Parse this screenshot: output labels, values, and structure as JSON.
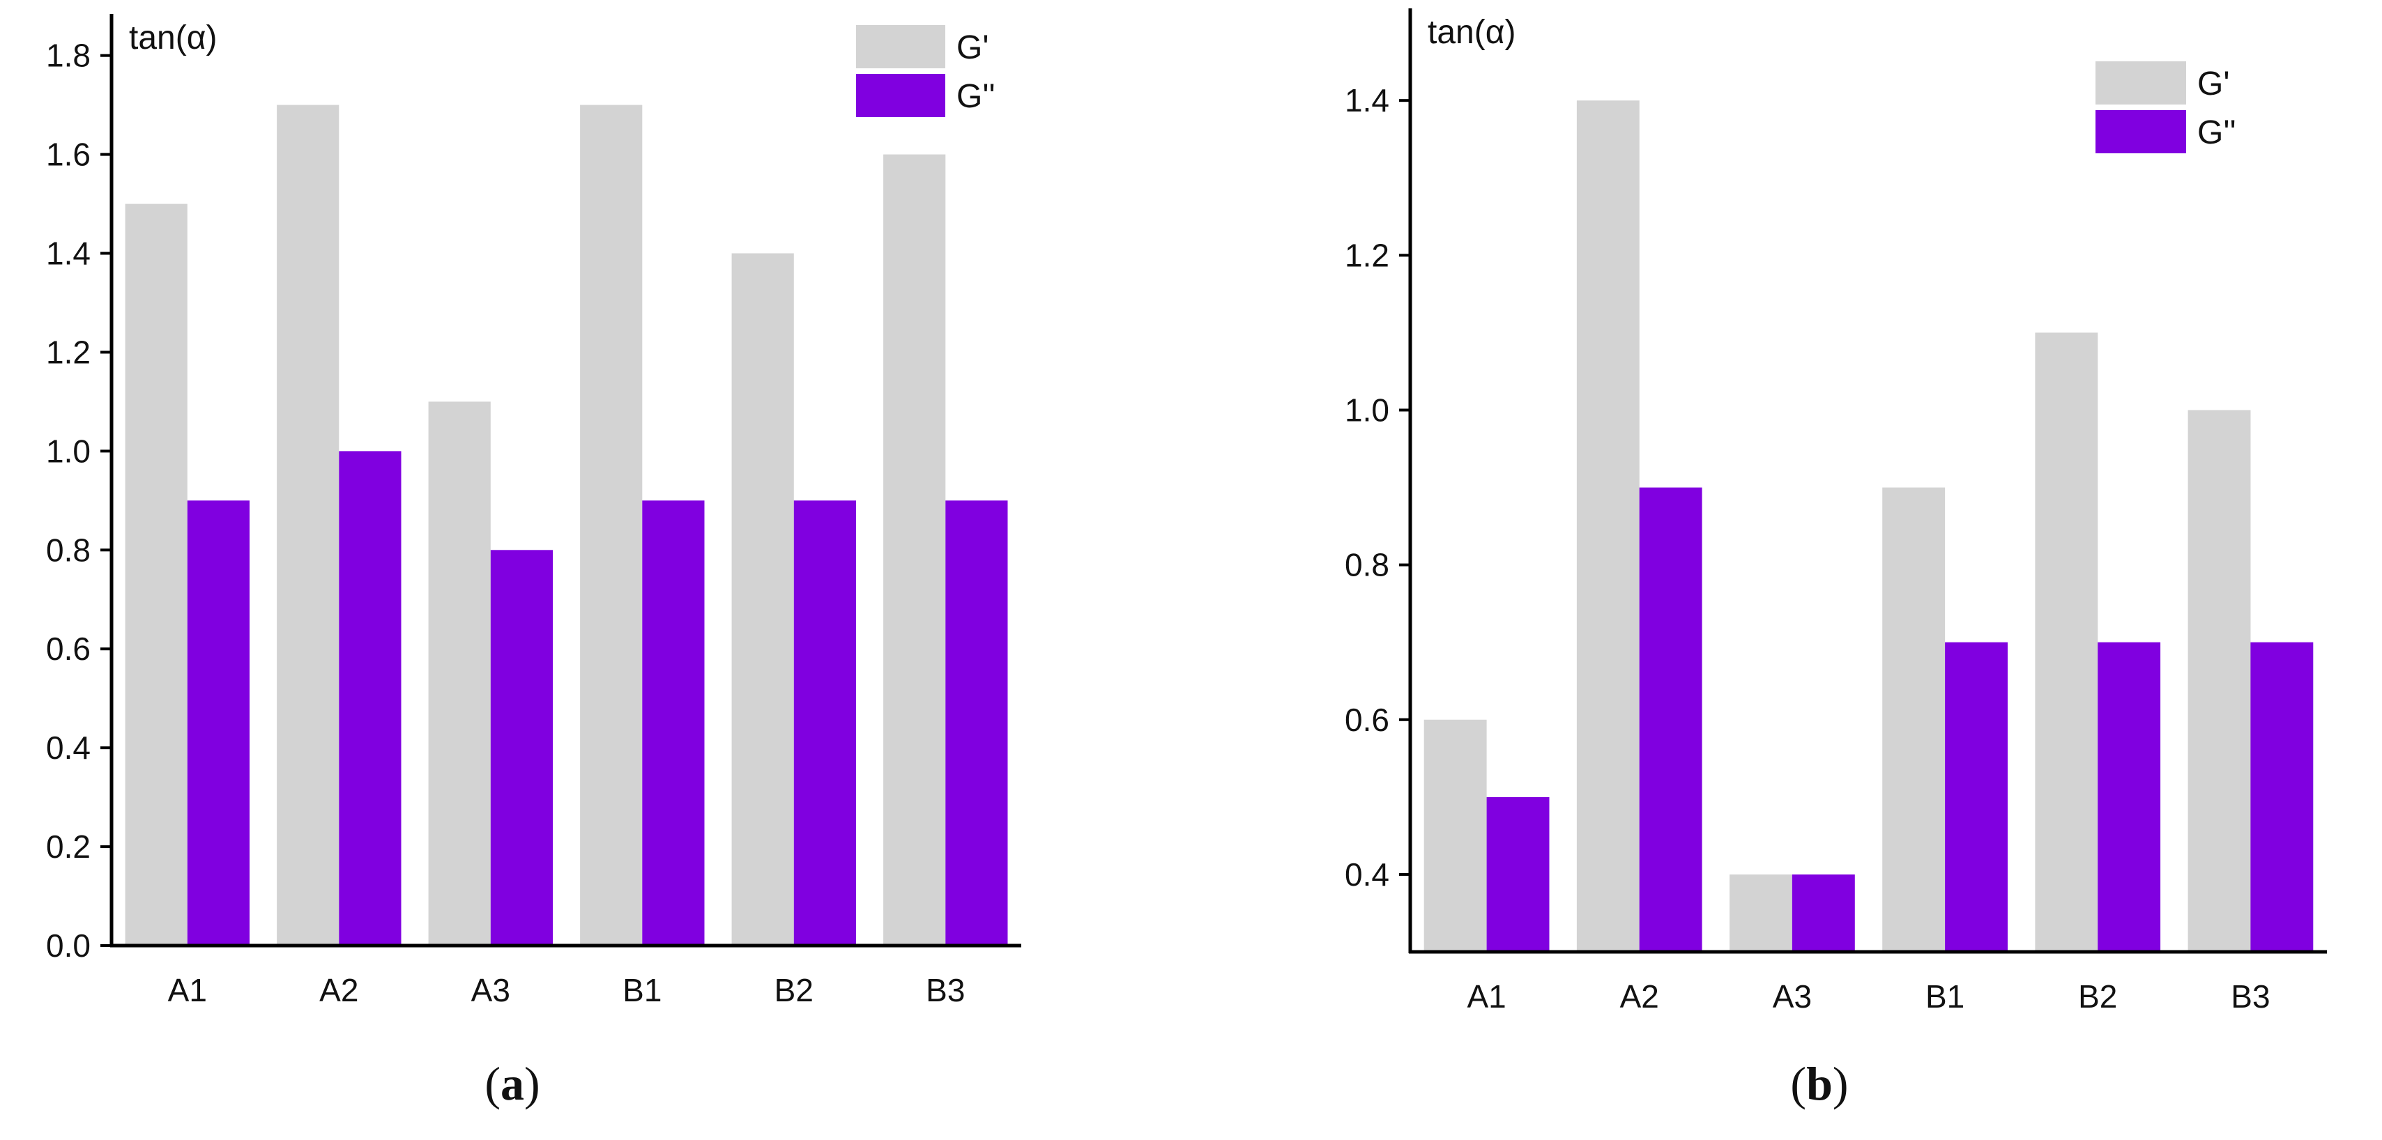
{
  "figure": {
    "panels": [
      {
        "open": "(",
        "letter": "a",
        "close": ")"
      },
      {
        "open": "(",
        "letter": "b",
        "close": ")"
      }
    ]
  },
  "chart_data": [
    {
      "type": "bar",
      "title": "",
      "xlabel": "",
      "ylabel": "tan(α)",
      "categories": [
        "A1",
        "A2",
        "A3",
        "B1",
        "B2",
        "B3"
      ],
      "series": [
        {
          "name": "G'",
          "color": "#d3d3d3",
          "values": [
            1.5,
            1.7,
            1.1,
            1.7,
            1.4,
            1.6
          ]
        },
        {
          "name": "G''",
          "color": "#8000e0",
          "values": [
            0.9,
            1.0,
            0.8,
            0.9,
            0.9,
            0.9
          ]
        }
      ],
      "ylim": [
        0.0,
        1.87
      ],
      "yticks": [
        0.0,
        0.2,
        0.4,
        0.6,
        0.8,
        1.0,
        1.2,
        1.4,
        1.6,
        1.8
      ],
      "ytick_labels": [
        "0.0",
        "0.2",
        "0.4",
        "0.6",
        "0.8",
        "1.0",
        "1.2",
        "1.4",
        "1.6",
        "1.8"
      ],
      "legend": "top-right"
    },
    {
      "type": "bar",
      "title": "",
      "xlabel": "",
      "ylabel": "tan(α)",
      "categories": [
        "A1",
        "A2",
        "A3",
        "B1",
        "B2",
        "B3"
      ],
      "series": [
        {
          "name": "G'",
          "color": "#d3d3d3",
          "values": [
            0.6,
            1.4,
            0.4,
            0.9,
            1.1,
            1.0
          ]
        },
        {
          "name": "G''",
          "color": "#8000e0",
          "values": [
            0.5,
            0.9,
            0.4,
            0.7,
            0.7,
            0.7
          ]
        }
      ],
      "ylim": [
        0.3,
        1.51
      ],
      "yticks": [
        0.4,
        0.6,
        0.8,
        1.0,
        1.2,
        1.4
      ],
      "ytick_labels": [
        "0.4",
        "0.6",
        "0.8",
        "1.0",
        "1.2",
        "1.4"
      ],
      "legend": "top-right"
    }
  ]
}
